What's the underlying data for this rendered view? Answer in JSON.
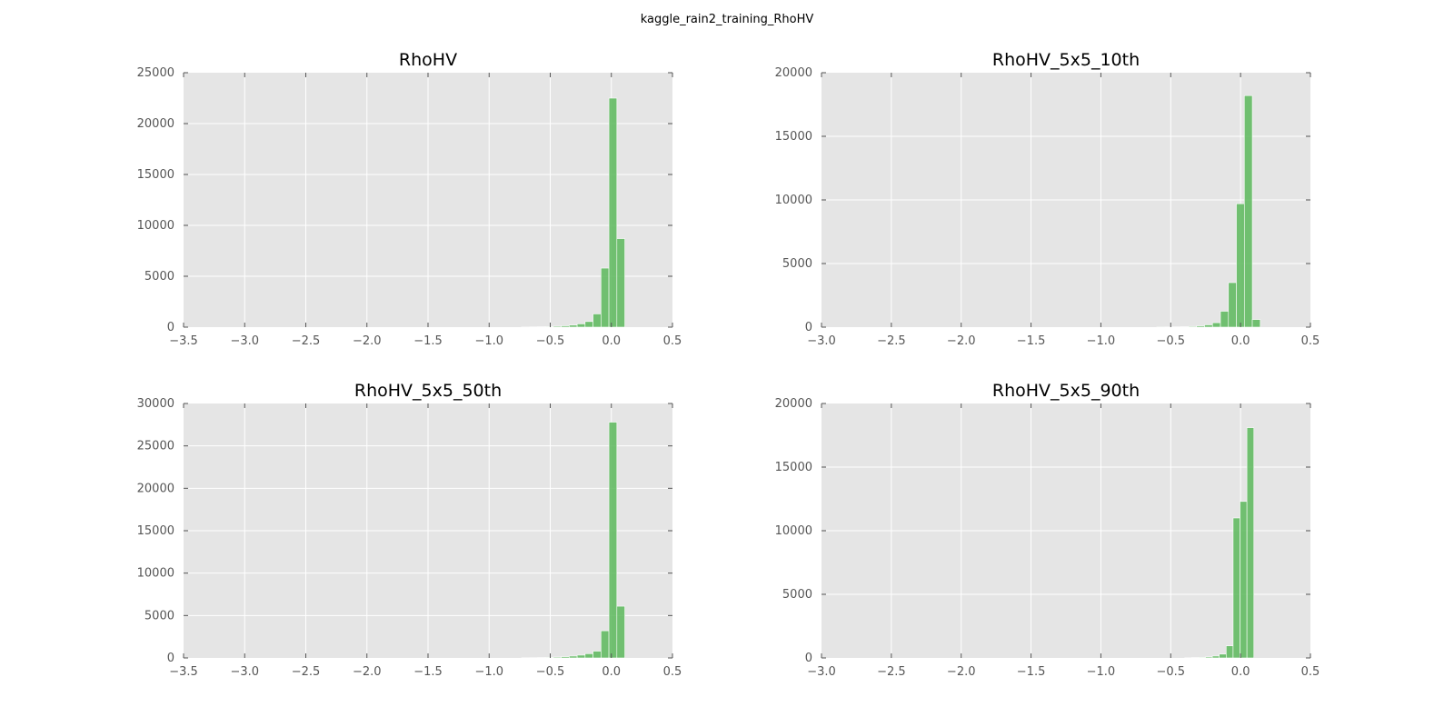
{
  "figure": {
    "title": "kaggle_rain2_training_RhoHV"
  },
  "colors": {
    "background": "#e5e5e5",
    "grid": "#ffffff",
    "bar": "#5cb85c",
    "bar_edge": "#ffffff",
    "tick": "#555555"
  },
  "chart_data": [
    {
      "type": "bar",
      "title": "RhoHV",
      "xlim": [
        -3.5,
        0.5
      ],
      "ylim": [
        0,
        25000
      ],
      "xticks": [
        -3.5,
        -3.0,
        -2.5,
        -2.0,
        -1.5,
        -1.0,
        -0.5,
        0.0,
        0.5
      ],
      "xtick_labels": [
        "−3.5",
        "−3.0",
        "−2.5",
        "−2.0",
        "−1.5",
        "−1.0",
        "−0.5",
        "0.0",
        "0.5"
      ],
      "yticks": [
        0,
        5000,
        10000,
        15000,
        20000,
        25000
      ],
      "ytick_labels": [
        "0",
        "5000",
        "10000",
        "15000",
        "20000",
        "25000"
      ],
      "bin_width": 0.065,
      "bin_starts": [
        -0.735,
        -0.67,
        -0.605,
        -0.54,
        -0.475,
        -0.41,
        -0.345,
        -0.28,
        -0.215,
        -0.15,
        -0.085,
        -0.02,
        0.045
      ],
      "values": [
        15,
        25,
        40,
        60,
        90,
        130,
        200,
        320,
        550,
        1300,
        5800,
        22500,
        8700
      ]
    },
    {
      "type": "bar",
      "title": "RhoHV_5x5_10th",
      "xlim": [
        -3.0,
        0.5
      ],
      "ylim": [
        0,
        20000
      ],
      "xticks": [
        -3.0,
        -2.5,
        -2.0,
        -1.5,
        -1.0,
        -0.5,
        0.0,
        0.5
      ],
      "xtick_labels": [
        "−3.0",
        "−2.5",
        "−2.0",
        "−1.5",
        "−1.0",
        "−0.5",
        "0.0",
        "0.5"
      ],
      "yticks": [
        0,
        5000,
        10000,
        15000,
        20000
      ],
      "ytick_labels": [
        "0",
        "5000",
        "10000",
        "15000",
        "20000"
      ],
      "bin_width": 0.057,
      "bin_starts": [
        -0.6,
        -0.543,
        -0.486,
        -0.429,
        -0.372,
        -0.315,
        -0.258,
        -0.201,
        -0.144,
        -0.087,
        -0.03,
        0.027,
        0.084
      ],
      "values": [
        10,
        15,
        25,
        40,
        60,
        100,
        180,
        350,
        1250,
        3500,
        9700,
        18200,
        600
      ]
    },
    {
      "type": "bar",
      "title": "RhoHV_5x5_50th",
      "xlim": [
        -3.5,
        0.5
      ],
      "ylim": [
        0,
        30000
      ],
      "xticks": [
        -3.5,
        -3.0,
        -2.5,
        -2.0,
        -1.5,
        -1.0,
        -0.5,
        0.0,
        0.5
      ],
      "xtick_labels": [
        "−3.5",
        "−3.0",
        "−2.5",
        "−2.0",
        "−1.5",
        "−1.0",
        "−0.5",
        "0.0",
        "0.5"
      ],
      "yticks": [
        0,
        5000,
        10000,
        15000,
        20000,
        25000,
        30000
      ],
      "ytick_labels": [
        "0",
        "5000",
        "10000",
        "15000",
        "20000",
        "25000",
        "30000"
      ],
      "bin_width": 0.065,
      "bin_starts": [
        -0.735,
        -0.67,
        -0.605,
        -0.54,
        -0.475,
        -0.41,
        -0.345,
        -0.28,
        -0.215,
        -0.15,
        -0.085,
        -0.02,
        0.045
      ],
      "values": [
        20,
        30,
        45,
        70,
        100,
        150,
        220,
        330,
        500,
        800,
        3200,
        27800,
        6100
      ]
    },
    {
      "type": "bar",
      "title": "RhoHV_5x5_90th",
      "xlim": [
        -3.0,
        0.5
      ],
      "ylim": [
        0,
        20000
      ],
      "xticks": [
        -3.0,
        -2.5,
        -2.0,
        -1.5,
        -1.0,
        -0.5,
        0.0,
        0.5
      ],
      "xtick_labels": [
        "−3.0",
        "−2.5",
        "−2.0",
        "−1.5",
        "−1.0",
        "−0.5",
        "0.0",
        "0.5"
      ],
      "yticks": [
        0,
        5000,
        10000,
        15000,
        20000
      ],
      "ytick_labels": [
        "0",
        "5000",
        "10000",
        "15000",
        "20000"
      ],
      "bin_width": 0.0495,
      "bin_starts": [
        -0.4,
        -0.3505,
        -0.301,
        -0.2515,
        -0.202,
        -0.1525,
        -0.103,
        -0.0535,
        -0.004,
        0.0455
      ],
      "values": [
        15,
        30,
        50,
        80,
        150,
        300,
        950,
        11000,
        12300,
        18100
      ]
    }
  ]
}
